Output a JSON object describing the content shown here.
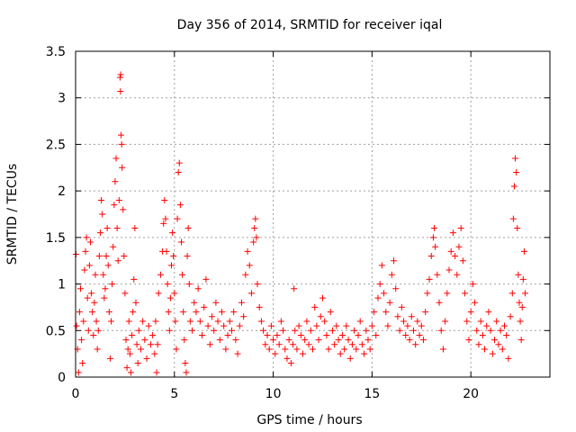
{
  "chart_data": {
    "type": "scatter",
    "title": "Day 356 of 2014, SRMTID for receiver iqal",
    "xlabel": "GPS time / hours",
    "ylabel": "SRMTID / TECUs",
    "xlim": [
      0,
      24
    ],
    "ylim": [
      0,
      3.5
    ],
    "xticks": [
      0,
      5,
      10,
      15,
      20
    ],
    "xtick_labels": [
      "0",
      "5",
      "10",
      "15",
      "20"
    ],
    "yticks": [
      0,
      0.5,
      1,
      1.5,
      2,
      2.5,
      3,
      3.5
    ],
    "ytick_labels": [
      "0",
      "0.5",
      "1",
      "1.5",
      "2",
      "2.5",
      "3",
      "3.5"
    ],
    "grid": true,
    "marker": "+",
    "series": [
      {
        "name": "SRMTID",
        "color": "#ff0000",
        "points": [
          [
            0.02,
            1.32
          ],
          [
            0.05,
            0.55
          ],
          [
            0.1,
            0.3
          ],
          [
            0.15,
            0.05
          ],
          [
            0.2,
            0.7
          ],
          [
            0.25,
            0.95
          ],
          [
            0.3,
            0.4
          ],
          [
            0.35,
            0.15
          ],
          [
            0.4,
            0.6
          ],
          [
            0.45,
            1.15
          ],
          [
            0.5,
            1.35
          ],
          [
            0.55,
            1.5
          ],
          [
            0.6,
            0.85
          ],
          [
            0.65,
            0.5
          ],
          [
            0.7,
            1.2
          ],
          [
            0.75,
            1.45
          ],
          [
            0.8,
            0.9
          ],
          [
            0.85,
            0.7
          ],
          [
            0.9,
            0.45
          ],
          [
            0.95,
            0.8
          ],
          [
            1.0,
            1.1
          ],
          [
            1.05,
            0.6
          ],
          [
            1.1,
            0.3
          ],
          [
            1.15,
            0.5
          ],
          [
            1.2,
            1.3
          ],
          [
            1.25,
            1.55
          ],
          [
            1.3,
            1.9
          ],
          [
            1.35,
            1.75
          ],
          [
            1.4,
            1.1
          ],
          [
            1.45,
            0.85
          ],
          [
            1.5,
            0.95
          ],
          [
            1.55,
            1.3
          ],
          [
            1.6,
            1.6
          ],
          [
            1.65,
            1.2
          ],
          [
            1.7,
            0.7
          ],
          [
            1.75,
            0.2
          ],
          [
            1.8,
            0.6
          ],
          [
            1.85,
            1.0
          ],
          [
            1.9,
            1.4
          ],
          [
            1.95,
            1.85
          ],
          [
            2.0,
            2.1
          ],
          [
            2.05,
            2.35
          ],
          [
            2.1,
            1.6
          ],
          [
            2.15,
            1.25
          ],
          [
            2.2,
            1.9
          ],
          [
            2.25,
            3.22
          ],
          [
            2.27,
            3.07
          ],
          [
            2.28,
            3.25
          ],
          [
            2.3,
            2.6
          ],
          [
            2.33,
            2.5
          ],
          [
            2.35,
            2.25
          ],
          [
            2.4,
            1.8
          ],
          [
            2.45,
            1.3
          ],
          [
            2.5,
            0.9
          ],
          [
            2.55,
            0.4
          ],
          [
            2.6,
            0.1
          ],
          [
            2.65,
            0.3
          ],
          [
            2.7,
            0.6
          ],
          [
            2.75,
            0.25
          ],
          [
            2.8,
            0.05
          ],
          [
            2.85,
            0.45
          ],
          [
            2.9,
            0.7
          ],
          [
            2.95,
            1.05
          ],
          [
            3.0,
            1.6
          ],
          [
            3.05,
            0.8
          ],
          [
            3.1,
            0.35
          ],
          [
            3.15,
            0.15
          ],
          [
            3.2,
            0.5
          ],
          [
            3.3,
            0.3
          ],
          [
            3.4,
            0.6
          ],
          [
            3.5,
            0.4
          ],
          [
            3.6,
            0.2
          ],
          [
            3.7,
            0.55
          ],
          [
            3.8,
            0.35
          ],
          [
            3.9,
            0.45
          ],
          [
            4.0,
            0.25
          ],
          [
            4.05,
            0.6
          ],
          [
            4.1,
            0.05
          ],
          [
            4.15,
            0.35
          ],
          [
            4.2,
            0.9
          ],
          [
            4.3,
            1.1
          ],
          [
            4.4,
            1.35
          ],
          [
            4.45,
            1.65
          ],
          [
            4.5,
            1.9
          ],
          [
            4.55,
            1.7
          ],
          [
            4.6,
            1.35
          ],
          [
            4.65,
            1.0
          ],
          [
            4.7,
            0.7
          ],
          [
            4.75,
            0.5
          ],
          [
            4.8,
            0.85
          ],
          [
            4.85,
            1.2
          ],
          [
            4.9,
            1.55
          ],
          [
            4.95,
            1.3
          ],
          [
            5.0,
            0.9
          ],
          [
            5.05,
            0.6
          ],
          [
            5.1,
            0.3
          ],
          [
            5.15,
            1.7
          ],
          [
            5.2,
            2.2
          ],
          [
            5.25,
            2.3
          ],
          [
            5.3,
            1.85
          ],
          [
            5.35,
            1.45
          ],
          [
            5.4,
            1.1
          ],
          [
            5.45,
            0.7
          ],
          [
            5.5,
            0.4
          ],
          [
            5.55,
            0.15
          ],
          [
            5.6,
            0.05
          ],
          [
            5.65,
            1.3
          ],
          [
            5.7,
            1.6
          ],
          [
            5.75,
            1.0
          ],
          [
            5.8,
            0.6
          ],
          [
            5.9,
            0.5
          ],
          [
            6.0,
            0.8
          ],
          [
            6.1,
            0.7
          ],
          [
            6.2,
            0.95
          ],
          [
            6.3,
            0.6
          ],
          [
            6.4,
            0.45
          ],
          [
            6.5,
            0.75
          ],
          [
            6.6,
            1.05
          ],
          [
            6.7,
            0.55
          ],
          [
            6.8,
            0.35
          ],
          [
            6.9,
            0.65
          ],
          [
            7.0,
            0.5
          ],
          [
            7.1,
            0.8
          ],
          [
            7.2,
            0.6
          ],
          [
            7.3,
            0.4
          ],
          [
            7.4,
            0.7
          ],
          [
            7.5,
            0.55
          ],
          [
            7.6,
            0.3
          ],
          [
            7.7,
            0.45
          ],
          [
            7.8,
            0.6
          ],
          [
            7.9,
            0.5
          ],
          [
            8.0,
            0.7
          ],
          [
            8.1,
            0.4
          ],
          [
            8.2,
            0.25
          ],
          [
            8.3,
            0.55
          ],
          [
            8.4,
            0.8
          ],
          [
            8.5,
            0.65
          ],
          [
            8.6,
            1.1
          ],
          [
            8.7,
            1.35
          ],
          [
            8.8,
            1.2
          ],
          [
            8.9,
            0.9
          ],
          [
            9.0,
            1.45
          ],
          [
            9.05,
            1.6
          ],
          [
            9.1,
            1.7
          ],
          [
            9.15,
            1.5
          ],
          [
            9.2,
            1.0
          ],
          [
            9.3,
            0.75
          ],
          [
            9.4,
            0.6
          ],
          [
            9.5,
            0.5
          ],
          [
            9.6,
            0.35
          ],
          [
            9.7,
            0.45
          ],
          [
            9.8,
            0.3
          ],
          [
            9.9,
            0.55
          ],
          [
            10.0,
            0.4
          ],
          [
            10.1,
            0.25
          ],
          [
            10.2,
            0.45
          ],
          [
            10.3,
            0.35
          ],
          [
            10.4,
            0.6
          ],
          [
            10.5,
            0.5
          ],
          [
            10.6,
            0.3
          ],
          [
            10.7,
            0.2
          ],
          [
            10.8,
            0.4
          ],
          [
            10.9,
            0.15
          ],
          [
            11.0,
            0.35
          ],
          [
            11.05,
            0.95
          ],
          [
            11.1,
            0.5
          ],
          [
            11.2,
            0.3
          ],
          [
            11.3,
            0.55
          ],
          [
            11.4,
            0.45
          ],
          [
            11.5,
            0.25
          ],
          [
            11.6,
            0.4
          ],
          [
            11.7,
            0.6
          ],
          [
            11.8,
            0.35
          ],
          [
            11.9,
            0.5
          ],
          [
            12.0,
            0.3
          ],
          [
            12.1,
            0.75
          ],
          [
            12.2,
            0.55
          ],
          [
            12.3,
            0.4
          ],
          [
            12.4,
            0.65
          ],
          [
            12.5,
            0.85
          ],
          [
            12.6,
            0.6
          ],
          [
            12.7,
            0.45
          ],
          [
            12.8,
            0.3
          ],
          [
            12.9,
            0.7
          ],
          [
            13.0,
            0.5
          ],
          [
            13.1,
            0.35
          ],
          [
            13.2,
            0.55
          ],
          [
            13.3,
            0.4
          ],
          [
            13.4,
            0.25
          ],
          [
            13.5,
            0.45
          ],
          [
            13.6,
            0.3
          ],
          [
            13.7,
            0.55
          ],
          [
            13.8,
            0.4
          ],
          [
            13.9,
            0.2
          ],
          [
            14.0,
            0.35
          ],
          [
            14.1,
            0.5
          ],
          [
            14.2,
            0.3
          ],
          [
            14.3,
            0.45
          ],
          [
            14.4,
            0.6
          ],
          [
            14.5,
            0.35
          ],
          [
            14.6,
            0.25
          ],
          [
            14.7,
            0.5
          ],
          [
            14.8,
            0.4
          ],
          [
            14.9,
            0.3
          ],
          [
            15.0,
            0.55
          ],
          [
            15.1,
            0.7
          ],
          [
            15.2,
            0.45
          ],
          [
            15.3,
            0.85
          ],
          [
            15.4,
            1.0
          ],
          [
            15.5,
            1.2
          ],
          [
            15.6,
            0.9
          ],
          [
            15.7,
            0.7
          ],
          [
            15.8,
            0.55
          ],
          [
            15.9,
            0.8
          ],
          [
            16.0,
            1.1
          ],
          [
            16.1,
            1.25
          ],
          [
            16.2,
            0.95
          ],
          [
            16.3,
            0.65
          ],
          [
            16.4,
            0.5
          ],
          [
            16.5,
            0.75
          ],
          [
            16.6,
            0.6
          ],
          [
            16.7,
            0.45
          ],
          [
            16.8,
            0.55
          ],
          [
            16.9,
            0.4
          ],
          [
            17.0,
            0.65
          ],
          [
            17.1,
            0.5
          ],
          [
            17.2,
            0.35
          ],
          [
            17.3,
            0.6
          ],
          [
            17.4,
            0.45
          ],
          [
            17.5,
            0.55
          ],
          [
            17.6,
            0.4
          ],
          [
            17.7,
            0.7
          ],
          [
            17.8,
            0.9
          ],
          [
            17.9,
            1.05
          ],
          [
            18.0,
            1.3
          ],
          [
            18.1,
            1.5
          ],
          [
            18.15,
            1.6
          ],
          [
            18.2,
            1.4
          ],
          [
            18.3,
            1.1
          ],
          [
            18.4,
            0.8
          ],
          [
            18.5,
            0.5
          ],
          [
            18.6,
            0.3
          ],
          [
            18.7,
            0.6
          ],
          [
            18.8,
            0.9
          ],
          [
            18.9,
            1.15
          ],
          [
            19.0,
            1.35
          ],
          [
            19.1,
            1.55
          ],
          [
            19.2,
            1.3
          ],
          [
            19.3,
            1.1
          ],
          [
            19.4,
            1.4
          ],
          [
            19.5,
            1.6
          ],
          [
            19.6,
            1.25
          ],
          [
            19.7,
            0.9
          ],
          [
            19.8,
            0.6
          ],
          [
            19.9,
            0.4
          ],
          [
            20.0,
            0.7
          ],
          [
            20.1,
            1.0
          ],
          [
            20.2,
            0.8
          ],
          [
            20.3,
            0.5
          ],
          [
            20.4,
            0.35
          ],
          [
            20.5,
            0.6
          ],
          [
            20.6,
            0.45
          ],
          [
            20.7,
            0.3
          ],
          [
            20.8,
            0.55
          ],
          [
            20.9,
            0.7
          ],
          [
            21.0,
            0.5
          ],
          [
            21.1,
            0.25
          ],
          [
            21.2,
            0.4
          ],
          [
            21.3,
            0.6
          ],
          [
            21.4,
            0.35
          ],
          [
            21.5,
            0.5
          ],
          [
            21.6,
            0.3
          ],
          [
            21.7,
            0.55
          ],
          [
            21.8,
            0.45
          ],
          [
            21.9,
            0.2
          ],
          [
            22.0,
            0.65
          ],
          [
            22.1,
            0.9
          ],
          [
            22.15,
            1.7
          ],
          [
            22.2,
            2.05
          ],
          [
            22.25,
            2.35
          ],
          [
            22.3,
            2.2
          ],
          [
            22.35,
            1.6
          ],
          [
            22.4,
            1.1
          ],
          [
            22.45,
            0.8
          ],
          [
            22.5,
            0.6
          ],
          [
            22.55,
            0.4
          ],
          [
            22.6,
            0.75
          ],
          [
            22.65,
            1.05
          ],
          [
            22.7,
            1.35
          ],
          [
            22.75,
            0.9
          ]
        ]
      }
    ]
  }
}
